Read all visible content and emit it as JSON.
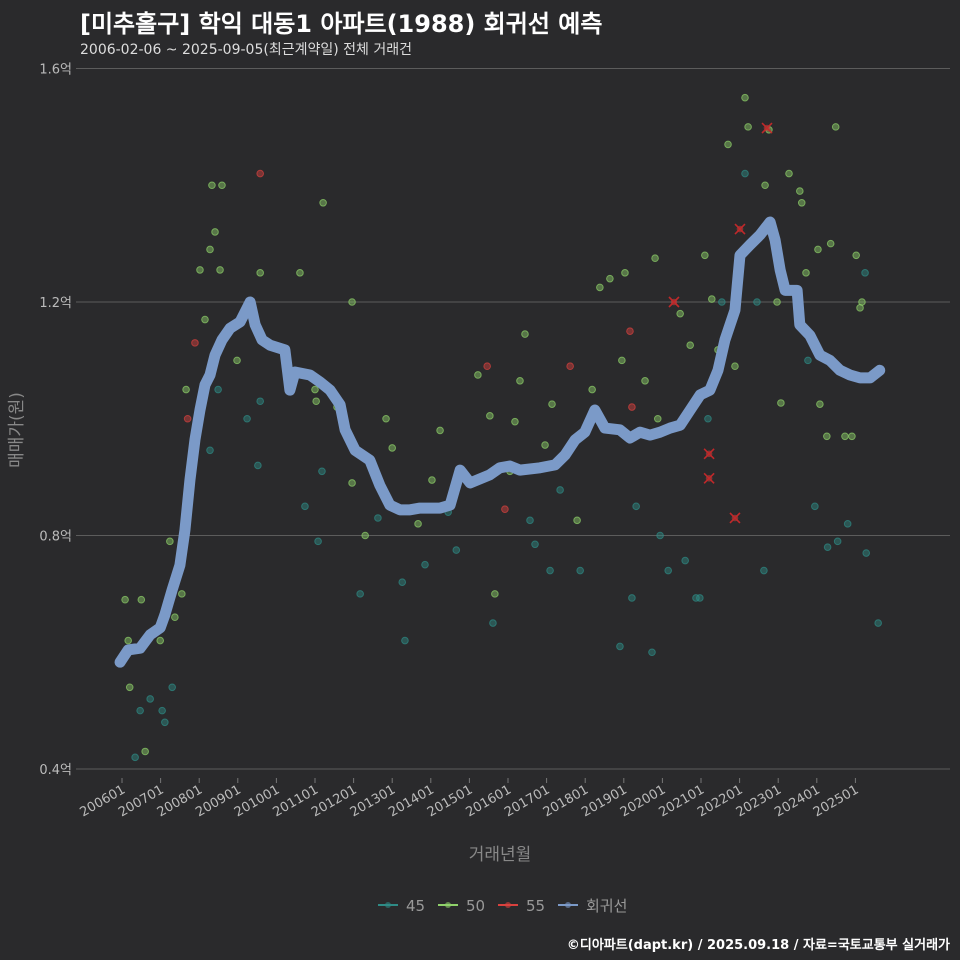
{
  "title": "[미추홀구] 학익 대동1 아파트(1988) 회귀선 예측",
  "subtitle": "2006-02-06 ~ 2025-09-05(최근계약일) 전체 거래건",
  "credit": "©디아파트(dapt.kr) / 2025.09.18 / 자료=국토교통부 실거래가",
  "colors": {
    "45": "#2e8b86",
    "50": "#8fd16a",
    "55": "#d9413e",
    "regression": "#7b9ac8",
    "background": "#2a2a2c"
  },
  "chart_data": {
    "type": "scatter",
    "title": "[미추홀구] 학익 대동1 아파트(1988) 회귀선 예측",
    "xlabel": "거래년월",
    "ylabel": "매매가(원)",
    "xlim": [
      2005.95,
      2025.65
    ],
    "ylim": [
      0.4,
      1.6
    ],
    "yticks": [
      {
        "value": 0.4,
        "label": "0.4억"
      },
      {
        "value": 0.8,
        "label": "0.8억"
      },
      {
        "value": 1.2,
        "label": "1.2억"
      },
      {
        "value": 1.6,
        "label": "1.6억"
      }
    ],
    "xticks": [
      "200601",
      "200701",
      "200801",
      "200901",
      "201001",
      "201101",
      "201201",
      "201301",
      "201401",
      "201501",
      "201601",
      "201701",
      "201801",
      "201901",
      "202001",
      "202101",
      "202201",
      "202301",
      "202401",
      "202501"
    ],
    "grid": true,
    "legend_position": "bottom",
    "legend": [
      {
        "key": "45",
        "label": "45"
      },
      {
        "key": "50",
        "label": "50"
      },
      {
        "key": "55",
        "label": "55"
      },
      {
        "key": "regression",
        "label": "회귀선"
      }
    ],
    "points": [
      [
        2006.08,
        0.69,
        "50"
      ],
      [
        2006.16,
        0.62,
        "50"
      ],
      [
        2006.2,
        0.54,
        "50"
      ],
      [
        2006.34,
        0.42,
        "45"
      ],
      [
        2006.47,
        0.5,
        "45"
      ],
      [
        2006.5,
        0.69,
        "50"
      ],
      [
        2006.6,
        0.43,
        "50"
      ],
      [
        2006.73,
        0.52,
        "45"
      ],
      [
        2006.99,
        0.62,
        "50"
      ],
      [
        2007.04,
        0.5,
        "45"
      ],
      [
        2007.11,
        0.48,
        "45"
      ],
      [
        2007.24,
        0.79,
        "50"
      ],
      [
        2007.3,
        0.54,
        "45"
      ],
      [
        2007.37,
        0.66,
        "50"
      ],
      [
        2007.55,
        0.7,
        "50"
      ],
      [
        2007.66,
        1.05,
        "50"
      ],
      [
        2007.7,
        1.0,
        "55"
      ],
      [
        2007.89,
        1.13,
        "55"
      ],
      [
        2008.02,
        1.255,
        "50"
      ],
      [
        2008.15,
        1.17,
        "50"
      ],
      [
        2008.28,
        1.29,
        "50"
      ],
      [
        2008.33,
        1.4,
        "50"
      ],
      [
        2008.41,
        1.32,
        "50"
      ],
      [
        2008.54,
        1.255,
        "50"
      ],
      [
        2008.59,
        1.4,
        "50"
      ],
      [
        2008.49,
        1.05,
        "45"
      ],
      [
        2008.28,
        0.946,
        "45"
      ],
      [
        2008.98,
        1.1,
        "50"
      ],
      [
        2009.24,
        1.0,
        "45"
      ],
      [
        2009.58,
        1.42,
        "55"
      ],
      [
        2009.52,
        0.92,
        "45"
      ],
      [
        2009.58,
        1.03,
        "45"
      ],
      [
        2009.58,
        1.25,
        "50"
      ],
      [
        2010.61,
        1.25,
        "50"
      ],
      [
        2010.74,
        0.85,
        "45"
      ],
      [
        2011.0,
        1.05,
        "50"
      ],
      [
        2011.03,
        1.03,
        "50"
      ],
      [
        2011.18,
        0.91,
        "45"
      ],
      [
        2011.21,
        1.37,
        "50"
      ],
      [
        2011.08,
        0.79,
        "45"
      ],
      [
        2011.57,
        1.02,
        "50"
      ],
      [
        2011.96,
        1.2,
        "50"
      ],
      [
        2011.96,
        0.89,
        "50"
      ],
      [
        2012.17,
        0.7,
        "45"
      ],
      [
        2012.3,
        0.8,
        "50"
      ],
      [
        2012.63,
        0.83,
        "45"
      ],
      [
        2012.84,
        1.0,
        "50"
      ],
      [
        2013.0,
        0.95,
        "50"
      ],
      [
        2013.33,
        0.62,
        "45"
      ],
      [
        2013.26,
        0.72,
        "45"
      ],
      [
        2013.67,
        0.82,
        "50"
      ],
      [
        2013.85,
        0.75,
        "45"
      ],
      [
        2014.03,
        0.895,
        "50"
      ],
      [
        2014.24,
        0.98,
        "50"
      ],
      [
        2014.45,
        0.84,
        "45"
      ],
      [
        2014.66,
        0.775,
        "45"
      ],
      [
        2014.81,
        0.905,
        "50"
      ],
      [
        2015.22,
        1.075,
        "50"
      ],
      [
        2015.46,
        1.09,
        "55"
      ],
      [
        2015.53,
        1.005,
        "50"
      ],
      [
        2015.61,
        0.65,
        "45"
      ],
      [
        2015.66,
        0.7,
        "50"
      ],
      [
        2015.92,
        0.845,
        "55"
      ],
      [
        2016.05,
        0.91,
        "50"
      ],
      [
        2016.18,
        0.995,
        "50"
      ],
      [
        2016.31,
        1.065,
        "50"
      ],
      [
        2016.44,
        1.145,
        "50"
      ],
      [
        2016.57,
        0.826,
        "45"
      ],
      [
        2016.7,
        0.785,
        "45"
      ],
      [
        2016.96,
        0.955,
        "50"
      ],
      [
        2017.09,
        0.74,
        "45"
      ],
      [
        2017.14,
        1.025,
        "50"
      ],
      [
        2017.35,
        0.878,
        "45"
      ],
      [
        2017.61,
        1.09,
        "55"
      ],
      [
        2017.79,
        0.826,
        "50"
      ],
      [
        2017.87,
        0.74,
        "45"
      ],
      [
        2018.18,
        1.05,
        "50"
      ],
      [
        2018.38,
        1.225,
        "50"
      ],
      [
        2018.64,
        1.24,
        "50"
      ],
      [
        2018.9,
        0.61,
        "45"
      ],
      [
        2018.95,
        1.1,
        "50"
      ],
      [
        2019.03,
        1.25,
        "50"
      ],
      [
        2019.16,
        1.15,
        "55"
      ],
      [
        2019.21,
        0.693,
        "45"
      ],
      [
        2019.21,
        1.02,
        "55"
      ],
      [
        2019.32,
        0.85,
        "45"
      ],
      [
        2019.55,
        1.065,
        "50"
      ],
      [
        2019.73,
        0.6,
        "45"
      ],
      [
        2019.81,
        1.275,
        "50"
      ],
      [
        2019.88,
        1.0,
        "50"
      ],
      [
        2019.94,
        0.8,
        "45"
      ],
      [
        2020.15,
        0.74,
        "45"
      ],
      [
        2020.46,
        1.18,
        "50"
      ],
      [
        2020.59,
        0.757,
        "45"
      ],
      [
        2020.72,
        1.126,
        "50"
      ],
      [
        2020.87,
        0.693,
        "45"
      ],
      [
        2020.97,
        0.693,
        "45"
      ],
      [
        2021.1,
        1.28,
        "50"
      ],
      [
        2021.18,
        1.0,
        "45"
      ],
      [
        2021.28,
        1.205,
        "50"
      ],
      [
        2021.44,
        1.118,
        "50"
      ],
      [
        2021.54,
        1.2,
        "45"
      ],
      [
        2021.7,
        1.47,
        "50"
      ],
      [
        2021.88,
        1.09,
        "50"
      ],
      [
        2022.14,
        1.55,
        "50"
      ],
      [
        2022.22,
        1.5,
        "50"
      ],
      [
        2022.14,
        1.42,
        "45"
      ],
      [
        2022.45,
        1.2,
        "45"
      ],
      [
        2022.63,
        0.74,
        "45"
      ],
      [
        2022.66,
        1.4,
        "50"
      ],
      [
        2022.76,
        1.495,
        "50"
      ],
      [
        2022.97,
        1.2,
        "50"
      ],
      [
        2023.07,
        1.027,
        "50"
      ],
      [
        2023.28,
        1.42,
        "50"
      ],
      [
        2023.56,
        1.39,
        "50"
      ],
      [
        2023.61,
        1.37,
        "50"
      ],
      [
        2023.72,
        1.25,
        "50"
      ],
      [
        2023.77,
        1.1,
        "45"
      ],
      [
        2023.95,
        0.85,
        "45"
      ],
      [
        2024.03,
        1.29,
        "50"
      ],
      [
        2024.08,
        1.025,
        "50"
      ],
      [
        2024.26,
        0.97,
        "50"
      ],
      [
        2024.28,
        0.78,
        "45"
      ],
      [
        2024.36,
        1.3,
        "50"
      ],
      [
        2024.49,
        1.5,
        "50"
      ],
      [
        2024.54,
        0.79,
        "45"
      ],
      [
        2024.73,
        0.97,
        "50"
      ],
      [
        2024.8,
        0.82,
        "45"
      ],
      [
        2024.91,
        0.97,
        "50"
      ],
      [
        2025.02,
        1.28,
        "50"
      ],
      [
        2025.12,
        1.19,
        "50"
      ],
      [
        2025.17,
        1.2,
        "50"
      ],
      [
        2025.25,
        1.25,
        "45"
      ],
      [
        2025.28,
        0.77,
        "45"
      ],
      [
        2025.59,
        0.65,
        "45"
      ]
    ],
    "outliers": [
      [
        2020.3,
        1.2
      ],
      [
        2022.01,
        1.325
      ],
      [
        2022.71,
        1.498
      ],
      [
        2021.21,
        0.94
      ],
      [
        2021.21,
        0.898
      ],
      [
        2021.88,
        0.83
      ]
    ],
    "regression": [
      [
        2005.95,
        0.583
      ],
      [
        2006.16,
        0.604
      ],
      [
        2006.47,
        0.607
      ],
      [
        2006.73,
        0.63
      ],
      [
        2006.99,
        0.642
      ],
      [
        2007.11,
        0.664
      ],
      [
        2007.3,
        0.707
      ],
      [
        2007.5,
        0.749
      ],
      [
        2007.63,
        0.809
      ],
      [
        2007.76,
        0.895
      ],
      [
        2007.89,
        0.964
      ],
      [
        2008.02,
        1.015
      ],
      [
        2008.15,
        1.058
      ],
      [
        2008.28,
        1.075
      ],
      [
        2008.41,
        1.109
      ],
      [
        2008.59,
        1.135
      ],
      [
        2008.8,
        1.155
      ],
      [
        2009.06,
        1.166
      ],
      [
        2009.32,
        1.2
      ],
      [
        2009.45,
        1.161
      ],
      [
        2009.63,
        1.135
      ],
      [
        2009.84,
        1.126
      ],
      [
        2010.22,
        1.118
      ],
      [
        2010.35,
        1.049
      ],
      [
        2010.48,
        1.08
      ],
      [
        2010.87,
        1.075
      ],
      [
        2011.13,
        1.063
      ],
      [
        2011.39,
        1.049
      ],
      [
        2011.65,
        1.024
      ],
      [
        2011.78,
        0.981
      ],
      [
        2012.04,
        0.946
      ],
      [
        2012.42,
        0.929
      ],
      [
        2012.68,
        0.886
      ],
      [
        2012.94,
        0.852
      ],
      [
        2013.2,
        0.844
      ],
      [
        2013.46,
        0.844
      ],
      [
        2013.72,
        0.847
      ],
      [
        2014.24,
        0.847
      ],
      [
        2014.5,
        0.852
      ],
      [
        2014.76,
        0.912
      ],
      [
        2015.02,
        0.89
      ],
      [
        2015.53,
        0.904
      ],
      [
        2015.79,
        0.916
      ],
      [
        2016.05,
        0.919
      ],
      [
        2016.31,
        0.912
      ],
      [
        2016.83,
        0.916
      ],
      [
        2017.22,
        0.921
      ],
      [
        2017.48,
        0.938
      ],
      [
        2017.74,
        0.964
      ],
      [
        2017.99,
        0.977
      ],
      [
        2018.25,
        1.015
      ],
      [
        2018.51,
        0.984
      ],
      [
        2018.9,
        0.981
      ],
      [
        2019.16,
        0.967
      ],
      [
        2019.42,
        0.977
      ],
      [
        2019.68,
        0.972
      ],
      [
        2019.94,
        0.977
      ],
      [
        2020.2,
        0.984
      ],
      [
        2020.46,
        0.989
      ],
      [
        2020.72,
        1.015
      ],
      [
        2020.98,
        1.041
      ],
      [
        2021.23,
        1.049
      ],
      [
        2021.44,
        1.083
      ],
      [
        2021.62,
        1.135
      ],
      [
        2021.88,
        1.186
      ],
      [
        2022.01,
        1.28
      ],
      [
        2022.27,
        1.298
      ],
      [
        2022.53,
        1.315
      ],
      [
        2022.79,
        1.337
      ],
      [
        2022.92,
        1.306
      ],
      [
        2023.05,
        1.255
      ],
      [
        2023.18,
        1.22
      ],
      [
        2023.49,
        1.22
      ],
      [
        2023.56,
        1.161
      ],
      [
        2023.82,
        1.143
      ],
      [
        2024.08,
        1.109
      ],
      [
        2024.34,
        1.1
      ],
      [
        2024.6,
        1.083
      ],
      [
        2024.86,
        1.075
      ],
      [
        2025.12,
        1.07
      ],
      [
        2025.38,
        1.07
      ],
      [
        2025.63,
        1.083
      ]
    ]
  }
}
